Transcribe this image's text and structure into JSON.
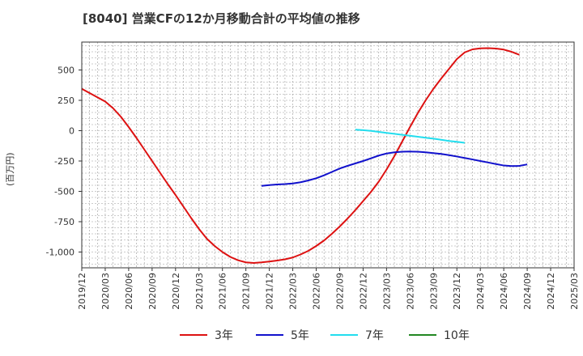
{
  "chart_data": {
    "type": "line",
    "title": "[8040]  営業CFの12か月移動合計の平均値の推移",
    "ylabel": "(百万円)",
    "ylim": [
      -1130,
      730
    ],
    "y_ticks": [
      500,
      250,
      0,
      -250,
      -500,
      -750,
      -1000
    ],
    "y_tick_labels": [
      "500",
      "250",
      "0",
      "-250",
      "-500",
      "-750",
      "-1,000"
    ],
    "x_ticks": [
      "2019-12",
      "2020-03",
      "2020-06",
      "2020-09",
      "2020-12",
      "2021-03",
      "2021-06",
      "2021-09",
      "2021-12",
      "2022-03",
      "2022-06",
      "2022-09",
      "2022-12",
      "2023-03",
      "2023-06",
      "2023-09",
      "2023-12",
      "2024-03",
      "2024-06",
      "2024-09",
      "2024-12",
      "2025-03"
    ],
    "x_tick_labels": [
      "2019/12",
      "2020/03",
      "2020/06",
      "2020/09",
      "2020/12",
      "2021/03",
      "2021/06",
      "2021/09",
      "2021/12",
      "2022/03",
      "2022/06",
      "2022/09",
      "2022/12",
      "2023/03",
      "2023/06",
      "2023/09",
      "2023/12",
      "2024/03",
      "2024/06",
      "2024/09",
      "2024/12",
      "2025/03"
    ],
    "grid": true,
    "legend_position": "bottom",
    "series": [
      {
        "name": "3年",
        "color": "#dd1111",
        "points": [
          [
            "2019-12",
            345
          ],
          [
            "2020-01",
            310
          ],
          [
            "2020-02",
            275
          ],
          [
            "2020-03",
            240
          ],
          [
            "2020-04",
            185
          ],
          [
            "2020-05",
            115
          ],
          [
            "2020-06",
            30
          ],
          [
            "2020-07",
            -60
          ],
          [
            "2020-08",
            -155
          ],
          [
            "2020-09",
            -250
          ],
          [
            "2020-10",
            -345
          ],
          [
            "2020-11",
            -440
          ],
          [
            "2020-12",
            -530
          ],
          [
            "2021-01",
            -625
          ],
          [
            "2021-02",
            -720
          ],
          [
            "2021-03",
            -810
          ],
          [
            "2021-04",
            -890
          ],
          [
            "2021-05",
            -950
          ],
          [
            "2021-06",
            -1000
          ],
          [
            "2021-07",
            -1040
          ],
          [
            "2021-08",
            -1068
          ],
          [
            "2021-09",
            -1085
          ],
          [
            "2021-10",
            -1090
          ],
          [
            "2021-11",
            -1085
          ],
          [
            "2021-12",
            -1078
          ],
          [
            "2022-01",
            -1070
          ],
          [
            "2022-02",
            -1060
          ],
          [
            "2022-03",
            -1045
          ],
          [
            "2022-04",
            -1020
          ],
          [
            "2022-05",
            -990
          ],
          [
            "2022-06",
            -950
          ],
          [
            "2022-07",
            -905
          ],
          [
            "2022-08",
            -850
          ],
          [
            "2022-09",
            -790
          ],
          [
            "2022-10",
            -725
          ],
          [
            "2022-11",
            -655
          ],
          [
            "2022-12",
            -580
          ],
          [
            "2023-01",
            -505
          ],
          [
            "2023-02",
            -420
          ],
          [
            "2023-03",
            -320
          ],
          [
            "2023-04",
            -210
          ],
          [
            "2023-05",
            -90
          ],
          [
            "2023-06",
            30
          ],
          [
            "2023-07",
            145
          ],
          [
            "2023-08",
            250
          ],
          [
            "2023-09",
            345
          ],
          [
            "2023-10",
            430
          ],
          [
            "2023-11",
            510
          ],
          [
            "2023-12",
            590
          ],
          [
            "2024-01",
            645
          ],
          [
            "2024-02",
            670
          ],
          [
            "2024-03",
            678
          ],
          [
            "2024-04",
            680
          ],
          [
            "2024-05",
            677
          ],
          [
            "2024-06",
            668
          ],
          [
            "2024-07",
            650
          ],
          [
            "2024-08",
            625
          ]
        ]
      },
      {
        "name": "5年",
        "color": "#1111cc",
        "points": [
          [
            "2021-11",
            -455
          ],
          [
            "2021-12",
            -448
          ],
          [
            "2022-01",
            -443
          ],
          [
            "2022-02",
            -440
          ],
          [
            "2022-03",
            -435
          ],
          [
            "2022-04",
            -425
          ],
          [
            "2022-05",
            -410
          ],
          [
            "2022-06",
            -392
          ],
          [
            "2022-07",
            -368
          ],
          [
            "2022-08",
            -340
          ],
          [
            "2022-09",
            -312
          ],
          [
            "2022-10",
            -290
          ],
          [
            "2022-11",
            -270
          ],
          [
            "2022-12",
            -250
          ],
          [
            "2023-01",
            -228
          ],
          [
            "2023-02",
            -205
          ],
          [
            "2023-03",
            -188
          ],
          [
            "2023-04",
            -178
          ],
          [
            "2023-05",
            -173
          ],
          [
            "2023-06",
            -172
          ],
          [
            "2023-07",
            -173
          ],
          [
            "2023-08",
            -178
          ],
          [
            "2023-09",
            -185
          ],
          [
            "2023-10",
            -192
          ],
          [
            "2023-11",
            -202
          ],
          [
            "2023-12",
            -213
          ],
          [
            "2024-01",
            -225
          ],
          [
            "2024-02",
            -237
          ],
          [
            "2024-03",
            -250
          ],
          [
            "2024-04",
            -262
          ],
          [
            "2024-05",
            -275
          ],
          [
            "2024-06",
            -287
          ],
          [
            "2024-07",
            -292
          ],
          [
            "2024-08",
            -290
          ],
          [
            "2024-09",
            -278
          ]
        ]
      },
      {
        "name": "7年",
        "color": "#22ddee",
        "points": [
          [
            "2022-11",
            8
          ],
          [
            "2022-12",
            4
          ],
          [
            "2023-01",
            -2
          ],
          [
            "2023-02",
            -10
          ],
          [
            "2023-03",
            -18
          ],
          [
            "2023-04",
            -26
          ],
          [
            "2023-05",
            -34
          ],
          [
            "2023-06",
            -42
          ],
          [
            "2023-07",
            -50
          ],
          [
            "2023-08",
            -58
          ],
          [
            "2023-09",
            -66
          ],
          [
            "2023-10",
            -75
          ],
          [
            "2023-11",
            -85
          ],
          [
            "2023-12",
            -92
          ],
          [
            "2024-01",
            -100
          ]
        ]
      },
      {
        "name": "10年",
        "color": "#228822",
        "points": []
      }
    ]
  }
}
